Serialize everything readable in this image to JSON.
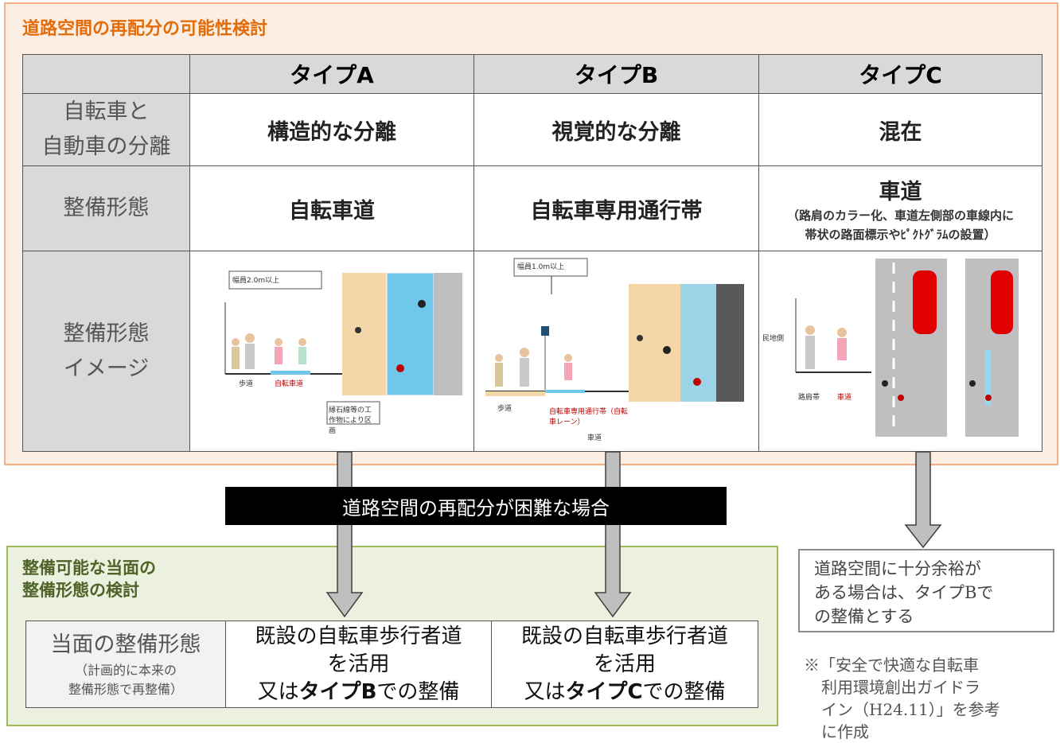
{
  "header": {
    "title": "道路空間の再配分の可能性検討"
  },
  "table": {
    "columns": [
      "タイプA",
      "タイプB",
      "タイプC"
    ],
    "rows": [
      {
        "label": [
          "自転車と",
          "自動車の分離"
        ],
        "cells": [
          "構造的な分離",
          "視覚的な分離",
          "混在"
        ]
      },
      {
        "label": [
          "整備形態"
        ],
        "cells": [
          "自転車道",
          "自転車専用通行帯",
          "車道"
        ],
        "note": [
          "（路肩のカラー化、車道左側部の車線内に",
          "帯状の路面標示やﾋﾟｸﾄｸﾞﾗﾑの設置）"
        ]
      },
      {
        "label": [
          "整備形態",
          "イメージ"
        ],
        "images": [
          {
            "width": "幅員2.0m以上",
            "sidewalk": "歩道",
            "lane": "自転車道",
            "note": "縁石線等の工作物により区画"
          },
          {
            "width": "幅員1.0m以上",
            "sidewalk": "歩道",
            "lane": "自転車専用通行帯（自転車レーン）",
            "road": "車道"
          },
          {
            "side": "民地側",
            "shoulder": "路肩帯",
            "road": "車道"
          }
        ]
      }
    ]
  },
  "banner": "道路空間の再配分が困難な場合",
  "interim": {
    "title": [
      "整備可能な当面の",
      "整備形態の検討"
    ],
    "label": "当面の整備形態",
    "label_note": [
      "（計画的に本来の",
      "整備形態で再整備）"
    ],
    "options": [
      {
        "lines": [
          "既設の自転車歩行者道",
          "を活用"
        ],
        "prefix": "又は",
        "emphasis": "タイプB",
        "suffix": "での整備"
      },
      {
        "lines": [
          "既設の自転車歩行者道",
          "を活用"
        ],
        "prefix": "又は",
        "emphasis": "タイプC",
        "suffix": "での整備"
      }
    ]
  },
  "side_box": [
    "道路空間に十分余裕が",
    "ある場合は、タイプBで",
    "の整備とする"
  ],
  "reference": [
    "※「安全で快適な自転車",
    "利用環境創出ガイドラ",
    "イン（H24.11）」を参考",
    "に作成"
  ]
}
